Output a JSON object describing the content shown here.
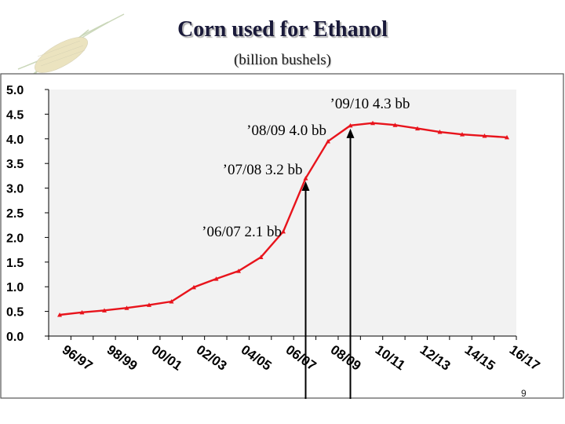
{
  "header": {
    "title": "Corn used for Ethanol",
    "subtitle": "(billion bushels)"
  },
  "page_number": "9",
  "colors": {
    "series_line": "#e8141c",
    "plot_background": "#f2f2f2",
    "arrow": "#000000",
    "frame": "#555555"
  },
  "chart_data": {
    "type": "line",
    "title": "Corn used for Ethanol",
    "subtitle": "(billion bushels)",
    "xlabel": "",
    "ylabel": "",
    "ylim": [
      0,
      5.0
    ],
    "y_ticks": [
      "0.0",
      "0.5",
      "1.0",
      "1.5",
      "2.0",
      "2.5",
      "3.0",
      "3.5",
      "4.0",
      "4.5",
      "5.0"
    ],
    "x_tick_labels": [
      "96/97",
      "98/99",
      "00/01",
      "02/03",
      "04/05",
      "06/07",
      "08/09",
      "10/11",
      "12/13",
      "14/15",
      "16/17"
    ],
    "grid": false,
    "legend": "none",
    "series": [
      {
        "values": [
          0.43,
          0.48,
          0.52,
          0.57,
          0.63,
          0.7,
          0.99,
          1.16,
          1.32,
          1.6,
          2.12,
          3.2,
          3.95,
          4.27,
          4.32,
          4.28,
          4.21,
          4.14,
          4.09,
          4.06,
          4.03
        ]
      }
    ],
    "annotations": [
      {
        "text": "’06/07 2.1 bb",
        "point_index": 10,
        "arrow": false
      },
      {
        "text": "’07/08 3.2 bb",
        "point_index": 11,
        "arrow": true
      },
      {
        "text": "’08/09 4.0 bb",
        "point_index": 12,
        "arrow": false
      },
      {
        "text": "’09/10 4.3 bb",
        "point_index": 13,
        "arrow": true
      }
    ]
  }
}
